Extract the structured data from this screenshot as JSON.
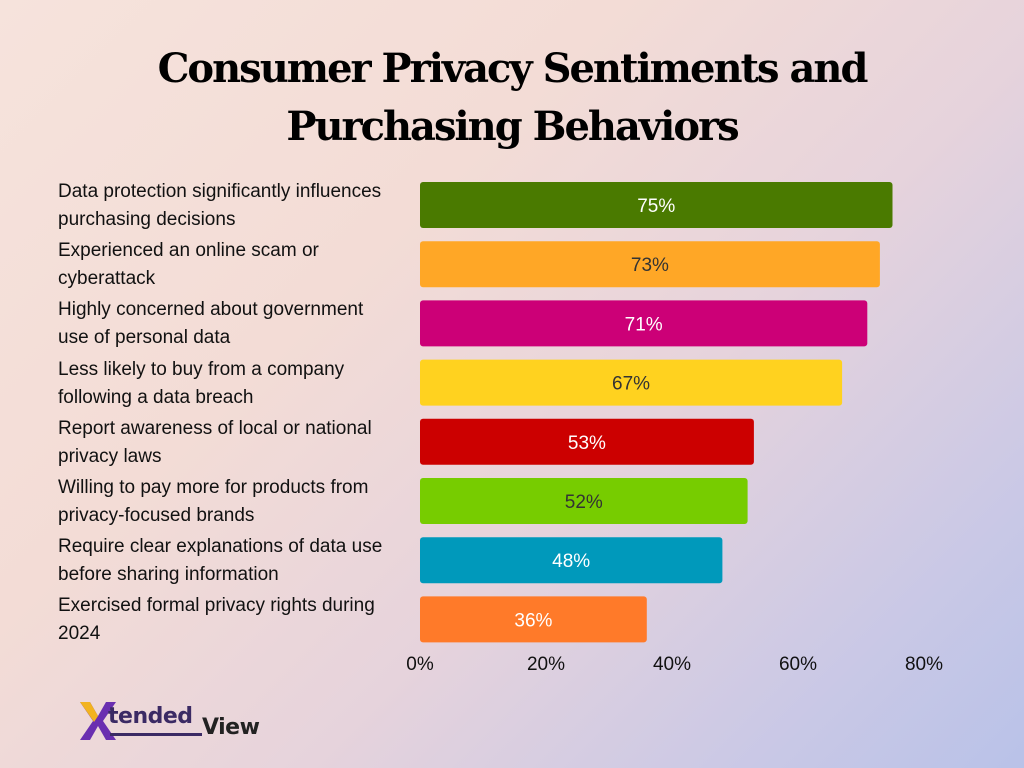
{
  "chart_data": {
    "type": "bar",
    "orientation": "horizontal",
    "title": "Consumer Privacy Sentiments and Purchasing Behaviors",
    "categories": [
      "Data protection significantly influences purchasing decisions",
      "Experienced an online scam or cyberattack",
      "Highly concerned about government use of personal data",
      "Less likely to buy from a company following a data breach",
      "Report awareness of local or national privacy laws",
      "Willing to pay more for products from privacy-focused brands",
      "Require clear explanations of data use before sharing information",
      "Exercised formal privacy rights during 2024"
    ],
    "category_lines": [
      [
        "Data protection significantly influences",
        "purchasing decisions"
      ],
      [
        "Experienced an online scam or",
        "cyberattack"
      ],
      [
        "Highly concerned about government",
        "use of personal data"
      ],
      [
        "Less likely to buy from a company",
        "following a data breach"
      ],
      [
        "Report awareness of local or national",
        "privacy laws"
      ],
      [
        "Willing to pay more for products from",
        "privacy-focused brands"
      ],
      [
        "Require clear explanations of data use",
        "before sharing information"
      ],
      [
        "Exercised formal privacy rights during",
        "2024"
      ]
    ],
    "values": [
      75,
      73,
      71,
      67,
      53,
      52,
      48,
      36
    ],
    "data_labels": [
      "75%",
      "73%",
      "71%",
      "67%",
      "53%",
      "52%",
      "48%",
      "36%"
    ],
    "colors": [
      "#4a7a00",
      "#ffa726",
      "#cc0077",
      "#ffd21f",
      "#cc0000",
      "#77cc00",
      "#0099bb",
      "#ff7a29"
    ],
    "label_colors": [
      "#ffffff",
      "#333333",
      "#ffffff",
      "#333333",
      "#ffffff",
      "#333333",
      "#ffffff",
      "#ffffff"
    ],
    "xlim": [
      0,
      80
    ],
    "xticks": [
      0,
      20,
      40,
      60,
      80
    ],
    "xtick_labels": [
      "0%",
      "20%",
      "40%",
      "60%",
      "80%"
    ],
    "grid": false,
    "legend": "none"
  },
  "logo": {
    "brand_text": "XtendedView",
    "part1": "tended",
    "part2": "View"
  }
}
